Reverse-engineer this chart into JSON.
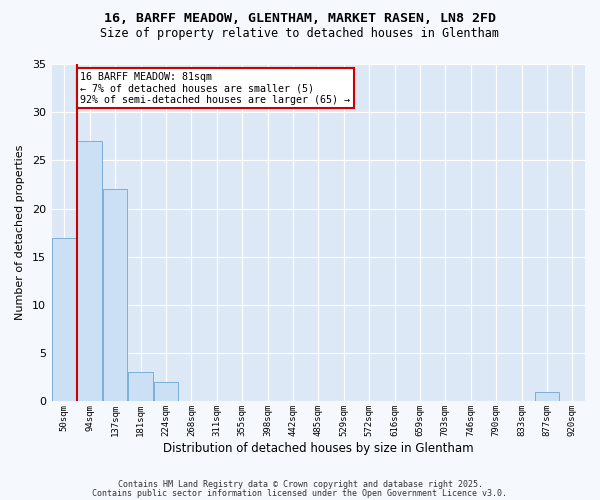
{
  "title1": "16, BARFF MEADOW, GLENTHAM, MARKET RASEN, LN8 2FD",
  "title2": "Size of property relative to detached houses in Glentham",
  "xlabel": "Distribution of detached houses by size in Glentham",
  "ylabel": "Number of detached properties",
  "bins": [
    "50sqm",
    "94sqm",
    "137sqm",
    "181sqm",
    "224sqm",
    "268sqm",
    "311sqm",
    "355sqm",
    "398sqm",
    "442sqm",
    "485sqm",
    "529sqm",
    "572sqm",
    "616sqm",
    "659sqm",
    "703sqm",
    "746sqm",
    "790sqm",
    "833sqm",
    "877sqm",
    "920sqm"
  ],
  "values": [
    17,
    27,
    22,
    3,
    2,
    0,
    0,
    0,
    0,
    0,
    0,
    0,
    0,
    0,
    0,
    0,
    0,
    0,
    0,
    1,
    0
  ],
  "bar_color": "#cce0f5",
  "bar_edge_color": "#7ab0d4",
  "vline_color": "#cc0000",
  "annotation_text": "16 BARFF MEADOW: 81sqm\n← 7% of detached houses are smaller (5)\n92% of semi-detached houses are larger (65) →",
  "ylim": [
    0,
    35
  ],
  "yticks": [
    0,
    5,
    10,
    15,
    20,
    25,
    30,
    35
  ],
  "plot_bg_color": "#dce8f5",
  "fig_bg_color": "#f5f8fc",
  "grid_color": "#ffffff",
  "footer1": "Contains HM Land Registry data © Crown copyright and database right 2025.",
  "footer2": "Contains public sector information licensed under the Open Government Licence v3.0."
}
